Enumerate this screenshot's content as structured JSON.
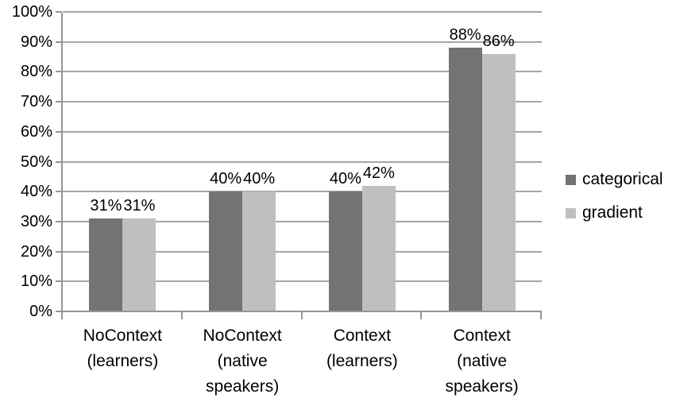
{
  "chart_data": {
    "type": "bar",
    "title": "",
    "xlabel": "",
    "ylabel": "",
    "categories": [
      "NoContext\n(learners)",
      "NoContext\n(native\nspeakers)",
      "Context\n(learners)",
      "Context\n(native\nspeakers)"
    ],
    "series": [
      {
        "name": "categorical",
        "color": "#737373",
        "values": [
          31,
          40,
          40,
          88
        ],
        "labels": [
          "31%",
          "40%",
          "40%",
          "88%"
        ]
      },
      {
        "name": "gradient",
        "color": "#bfbfbf",
        "values": [
          31,
          40,
          42,
          86
        ],
        "labels": [
          "31%",
          "40%",
          "42%",
          "86%"
        ]
      }
    ],
    "ylim": [
      0,
      100
    ],
    "ytick_step": 10,
    "ytick_labels": [
      "0%",
      "10%",
      "20%",
      "30%",
      "40%",
      "50%",
      "60%",
      "70%",
      "80%",
      "90%",
      "100%"
    ],
    "grid": true,
    "legend_position": "right"
  },
  "colors": {
    "background": "#ffffff",
    "gridline": "#a6a6a6",
    "axis": "#969696",
    "text": "#000000"
  }
}
